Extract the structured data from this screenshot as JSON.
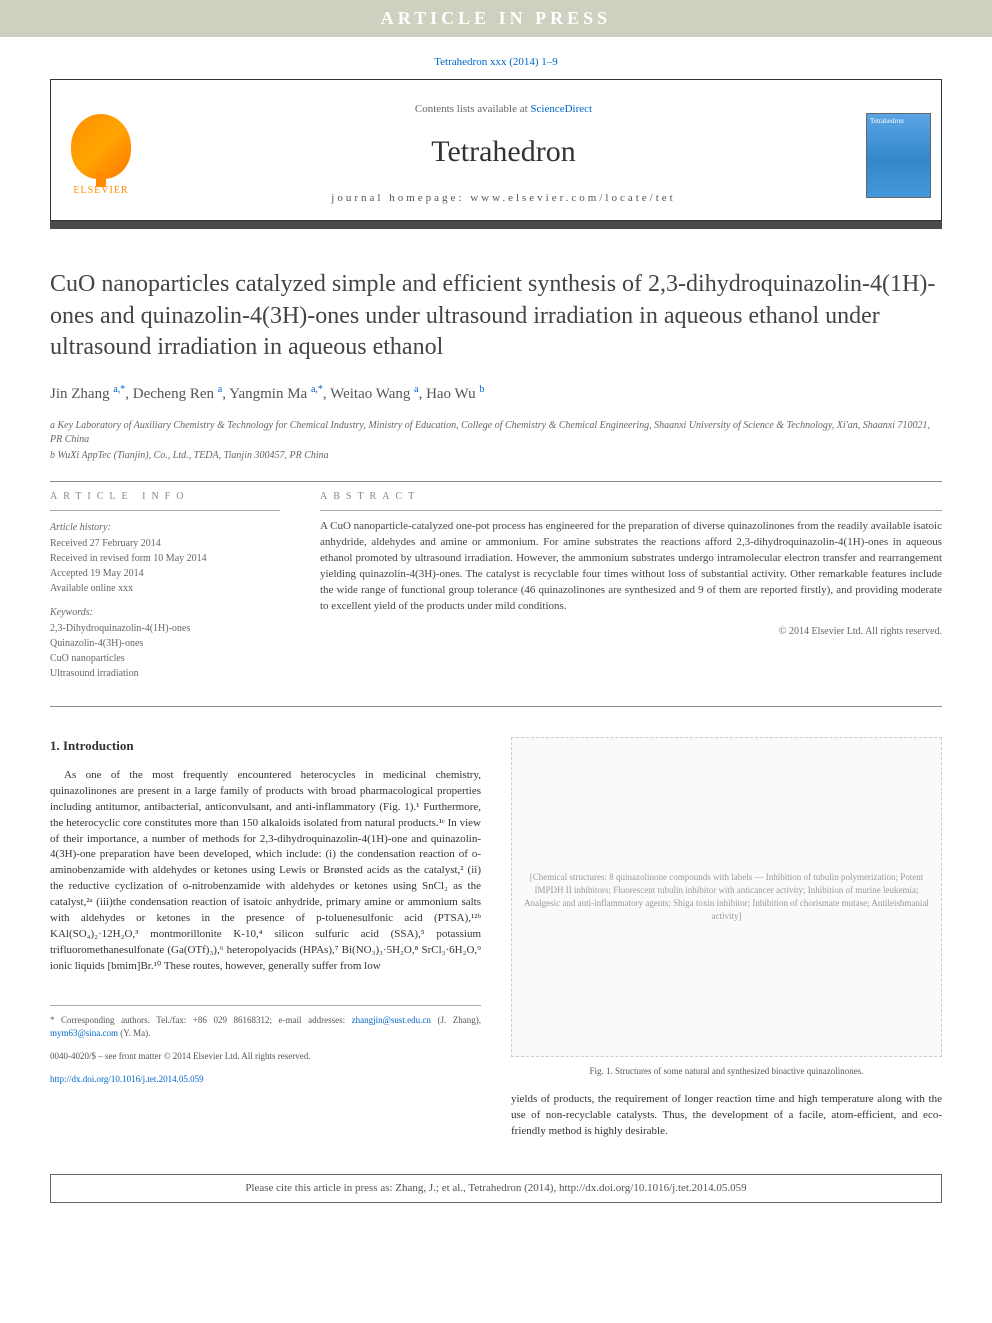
{
  "banner": "ARTICLE IN PRESS",
  "citation_top": "Tetrahedron xxx (2014) 1–9",
  "header": {
    "contents_prefix": "Contents lists available at ",
    "contents_link": "ScienceDirect",
    "journal": "Tetrahedron",
    "homepage_label": "journal homepage: www.elsevier.com/locate/tet",
    "publisher": "ELSEVIER",
    "cover_text": "Tetrahedron"
  },
  "title": "CuO nanoparticles catalyzed simple and efficient synthesis of 2,3-dihydroquinazolin-4(1H)-ones and quinazolin-4(3H)-ones under ultrasound irradiation in aqueous ethanol under ultrasound irradiation in aqueous ethanol",
  "authors_html": "Jin Zhang <sup class='sup'>a,*</sup>, Decheng Ren <sup class='sup'>a</sup>, Yangmin Ma <sup class='sup'>a,*</sup>, Weitao Wang <sup class='sup'>a</sup>, Hao Wu <sup class='sup'>b</sup>",
  "affiliations": {
    "a": "a Key Laboratory of Auxiliary Chemistry & Technology for Chemical Industry, Ministry of Education, College of Chemistry & Chemical Engineering, Shaanxi University of Science & Technology, Xi'an, Shaanxi 710021, PR China",
    "b": "b WuXi AppTec (Tianjin), Co., Ltd., TEDA, Tianjin 300457, PR China"
  },
  "article_info": {
    "header": "ARTICLE INFO",
    "history_label": "Article history:",
    "history": [
      "Received 27 February 2014",
      "Received in revised form 10 May 2014",
      "Accepted 19 May 2014",
      "Available online xxx"
    ],
    "keywords_label": "Keywords:",
    "keywords": [
      "2,3-Dihydroquinazolin-4(1H)-ones",
      "Quinazolin-4(3H)-ones",
      "CuO nanoparticles",
      "Ultrasound irradiation"
    ]
  },
  "abstract": {
    "header": "ABSTRACT",
    "text": "A CuO nanoparticle-catalyzed one-pot process has engineered for the preparation of diverse quinazolinones from the readily available isatoic anhydride, aldehydes and amine or ammonium. For amine substrates the reactions afford 2,3-dihydroquinazolin-4(1H)-ones in aqueous ethanol promoted by ultrasound irradiation. However, the ammonium substrates undergo intramolecular electron transfer and rearrangement yielding quinazolin-4(3H)-ones. The catalyst is recyclable four times without loss of substantial activity. Other remarkable features include the wide range of functional group tolerance (46 quinazolinones are synthesized and 9 of them are reported firstly), and providing moderate to excellent yield of the products under mild conditions.",
    "copyright": "© 2014 Elsevier Ltd. All rights reserved."
  },
  "introduction": {
    "heading": "1. Introduction",
    "paragraph": "As one of the most frequently encountered heterocycles in medicinal chemistry, quinazolinones are present in a large family of products with broad pharmacological properties including antitumor, antibacterial, anticonvulsant, and anti-inflammatory (Fig. 1).¹ Furthermore, the heterocyclic core constitutes more than 150 alkaloids isolated from natural products.¹ᶜ In view of their importance, a number of methods for 2,3-dihydroquinazolin-4(1H)-one and quinazolin-4(3H)-one preparation have been developed, which include: (i) the condensation reaction of o-aminobenzamide with aldehydes or ketones using Lewis or Brønsted acids as the catalyst,² (ii) the reductive cyclization of o-nitrobenzamide with aldehydes or ketones using SnCl₂ as the catalyst,²ᵃ (iii)the condensation reaction of isatoic anhydride, primary amine or ammonium salts with aldehydes or ketones in the presence of p-toluenesulfonic acid (PTSA),¹²ᵇ KAl(SO₄)₂·12H₂O,³ montmorillonite K-10,⁴ silicon sulfuric acid (SSA),⁵ potassium trifluoromethanesulfonate (Ga(OTf)₃),⁶ heteropolyacids (HPAs),⁷ Bi(NO₃)₃·5H₂O,⁸ SrCl₃·6H₂O,⁹ ionic liquids [bmim]Br.¹⁰ These routes, however, generally suffer from low"
  },
  "figure1": {
    "placeholder_text": "[Chemical structures: 8 quinazolinone compounds with labels — Inhibition of tubulin polymerization; Potent IMPDH II inhibitors; Fluorescent tubulin inhibitor with anticancer activity; Inhibition of murine leukemia; Analgesic and anti-inflammatory agents; Shiga toxin inhibitor; Inhibition of chorismate mutase; Antileishmanial activity]",
    "caption": "Fig. 1. Structures of some natural and synthesized bioactive quinazolinones."
  },
  "right_col_continuation": "yields of products, the requirement of longer reaction time and high temperature along with the use of non-recyclable catalysts. Thus, the development of a facile, atom-efficient, and eco-friendly method is highly desirable.",
  "footer": {
    "corresponding": "* Corresponding authors. Tel./fax: +86 029 86168312; e-mail addresses: ",
    "email1": "zhangjin@sust.edu.cn",
    "email1_name": " (J. Zhang), ",
    "email2": "mym63@sina.com",
    "email2_name": " (Y. Ma).",
    "issn": "0040-4020/$ – see front matter © 2014 Elsevier Ltd. All rights reserved.",
    "doi": "http://dx.doi.org/10.1016/j.tet.2014.05.059"
  },
  "cite_box": "Please cite this article in press as: Zhang, J.; et al., Tetrahedron (2014), http://dx.doi.org/10.1016/j.tet.2014.05.059",
  "colors": {
    "banner_bg": "#d0d0c0",
    "link": "#0066cc",
    "dark_bar": "#4a4a4a",
    "elsevier": "#ff8c00"
  }
}
